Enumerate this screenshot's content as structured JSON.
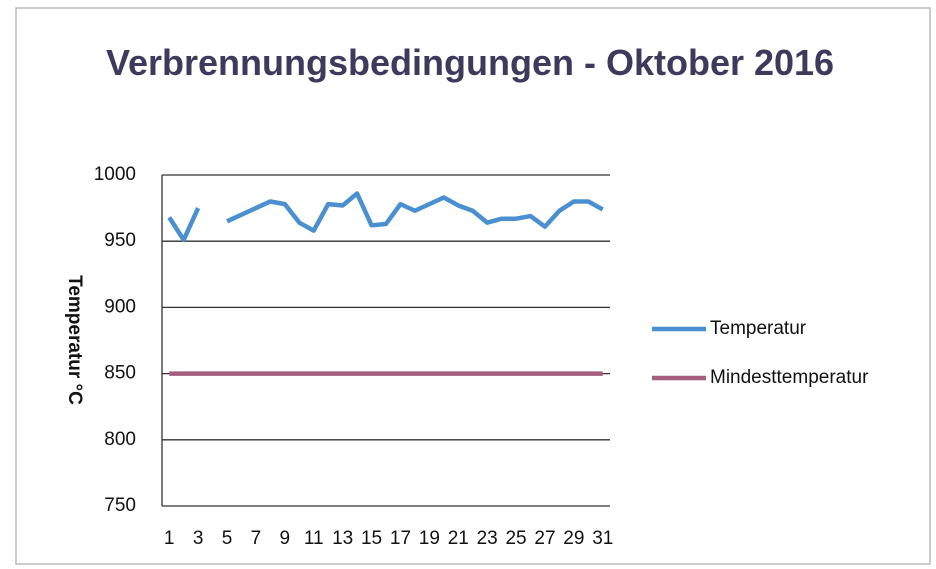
{
  "chart_data": {
    "type": "line",
    "title": "Verbrennungsbedingungen -  Oktober 2016",
    "y_label": "Temperatur °C",
    "categories": [
      "1",
      null,
      "3",
      null,
      "5",
      null,
      "7",
      null,
      "9",
      null,
      "11",
      null,
      "13",
      null,
      "15",
      null,
      "17",
      null,
      "19",
      null,
      "21",
      null,
      "23",
      null,
      "25",
      null,
      "27",
      null,
      "29",
      null,
      "31"
    ],
    "series": [
      {
        "name": "Temperatur",
        "color": "#4a90d0",
        "values": [
          968,
          951,
          975,
          null,
          965,
          970,
          975,
          980,
          978,
          964,
          958,
          978,
          977,
          986,
          962,
          963,
          978,
          973,
          978,
          983,
          977,
          973,
          964,
          967,
          967,
          969,
          961,
          973,
          980,
          980,
          974
        ]
      },
      {
        "name": "Mindesttemperatur",
        "color": "#a55e7e",
        "values": [
          850,
          850,
          850,
          850,
          850,
          850,
          850,
          850,
          850,
          850,
          850,
          850,
          850,
          850,
          850,
          850,
          850,
          850,
          850,
          850,
          850,
          850,
          850,
          850,
          850,
          850,
          850,
          850,
          850,
          850,
          850
        ]
      }
    ],
    "ylim": [
      750,
      1000
    ],
    "yticks": [
      750,
      800,
      850,
      900,
      950,
      1000
    ],
    "grid": true,
    "legend": "right"
  }
}
